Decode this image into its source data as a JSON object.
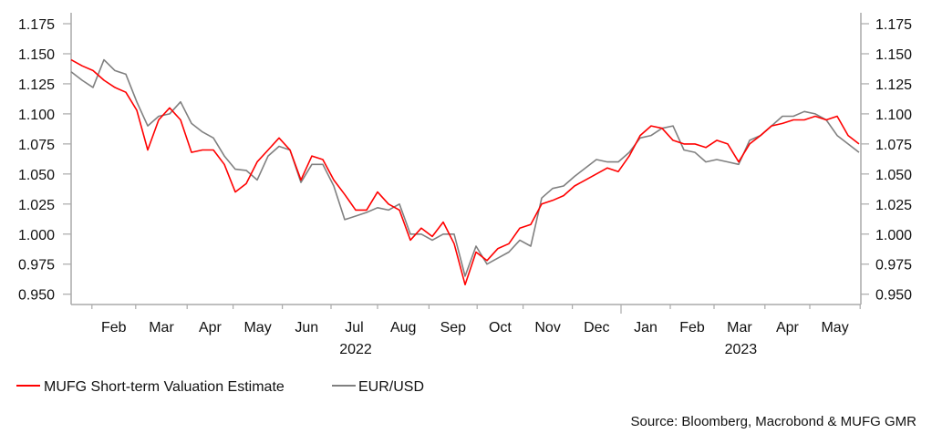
{
  "chart_data": {
    "type": "line",
    "title": "",
    "xlabel": "",
    "ylabel": "",
    "ylim": [
      0.94,
      1.18
    ],
    "yticks": [
      "0.950",
      "0.975",
      "1.000",
      "1.025",
      "1.050",
      "1.075",
      "1.100",
      "1.125",
      "1.150",
      "1.175"
    ],
    "ytick_values": [
      0.95,
      0.975,
      1.0,
      1.025,
      1.05,
      1.075,
      1.1,
      1.125,
      1.15,
      1.175
    ],
    "x_unit": "weeks from start (early Jan 2022) to late May 2023",
    "xlim": [
      0,
      72
    ],
    "month_ticks": [
      1.9,
      5.9,
      10.6,
      14.8,
      19.3,
      23.75,
      28,
      32.7,
      37.1,
      41.3,
      45.8,
      50.25,
      54.75,
      58.75,
      63.4,
      67.5,
      72.1
    ],
    "month_labels": [
      "Feb",
      "Mar",
      "Apr",
      "May",
      "Jun",
      "Jul",
      "Aug",
      "Sep",
      "Oct",
      "Nov",
      "Dec",
      "Jan",
      "Feb",
      "Mar",
      "Apr",
      "May"
    ],
    "year_labels": [
      {
        "label": "2022",
        "center": 26.0
      },
      {
        "label": "2023",
        "center": 61.2
      }
    ],
    "year_tick": 50.25,
    "series": [
      {
        "name": "MUFG Short-term Valuation Estimate",
        "color": "#ff0000",
        "values": [
          1.145,
          1.14,
          1.136,
          1.128,
          1.122,
          1.118,
          1.103,
          1.07,
          1.095,
          1.105,
          1.095,
          1.068,
          1.07,
          1.07,
          1.058,
          1.035,
          1.042,
          1.06,
          1.07,
          1.08,
          1.07,
          1.045,
          1.065,
          1.062,
          1.045,
          1.033,
          1.02,
          1.02,
          1.035,
          1.025,
          1.02,
          0.995,
          1.005,
          0.998,
          1.01,
          0.992,
          0.958,
          0.985,
          0.978,
          0.988,
          0.992,
          1.005,
          1.008,
          1.025,
          1.028,
          1.032,
          1.04,
          1.045,
          1.05,
          1.055,
          1.052,
          1.065,
          1.082,
          1.09,
          1.088,
          1.078,
          1.075,
          1.075,
          1.072,
          1.078,
          1.075,
          1.06,
          1.075,
          1.082,
          1.09,
          1.092,
          1.095,
          1.095,
          1.098,
          1.095,
          1.098,
          1.082,
          1.075
        ]
      },
      {
        "name": "EUR/USD",
        "color": "#808080",
        "values": [
          1.135,
          1.128,
          1.122,
          1.145,
          1.136,
          1.133,
          1.11,
          1.09,
          1.098,
          1.1,
          1.11,
          1.092,
          1.085,
          1.08,
          1.065,
          1.054,
          1.053,
          1.045,
          1.065,
          1.073,
          1.07,
          1.043,
          1.058,
          1.058,
          1.04,
          1.012,
          1.015,
          1.018,
          1.022,
          1.02,
          1.025,
          1.0,
          1.0,
          0.995,
          1.0,
          1.0,
          0.965,
          0.99,
          0.975,
          0.98,
          0.985,
          0.995,
          0.99,
          1.03,
          1.038,
          1.04,
          1.048,
          1.055,
          1.062,
          1.06,
          1.06,
          1.068,
          1.08,
          1.082,
          1.088,
          1.09,
          1.07,
          1.068,
          1.06,
          1.062,
          1.06,
          1.058,
          1.078,
          1.082,
          1.09,
          1.098,
          1.098,
          1.102,
          1.1,
          1.095,
          1.082,
          1.075,
          1.068
        ]
      }
    ],
    "legend_position": "bottom-left",
    "grid": false
  },
  "legend": {
    "items": [
      "MUFG Short-term Valuation Estimate",
      "EUR/USD"
    ]
  },
  "source": "Source: Bloomberg, Macrobond & MUFG GMR"
}
